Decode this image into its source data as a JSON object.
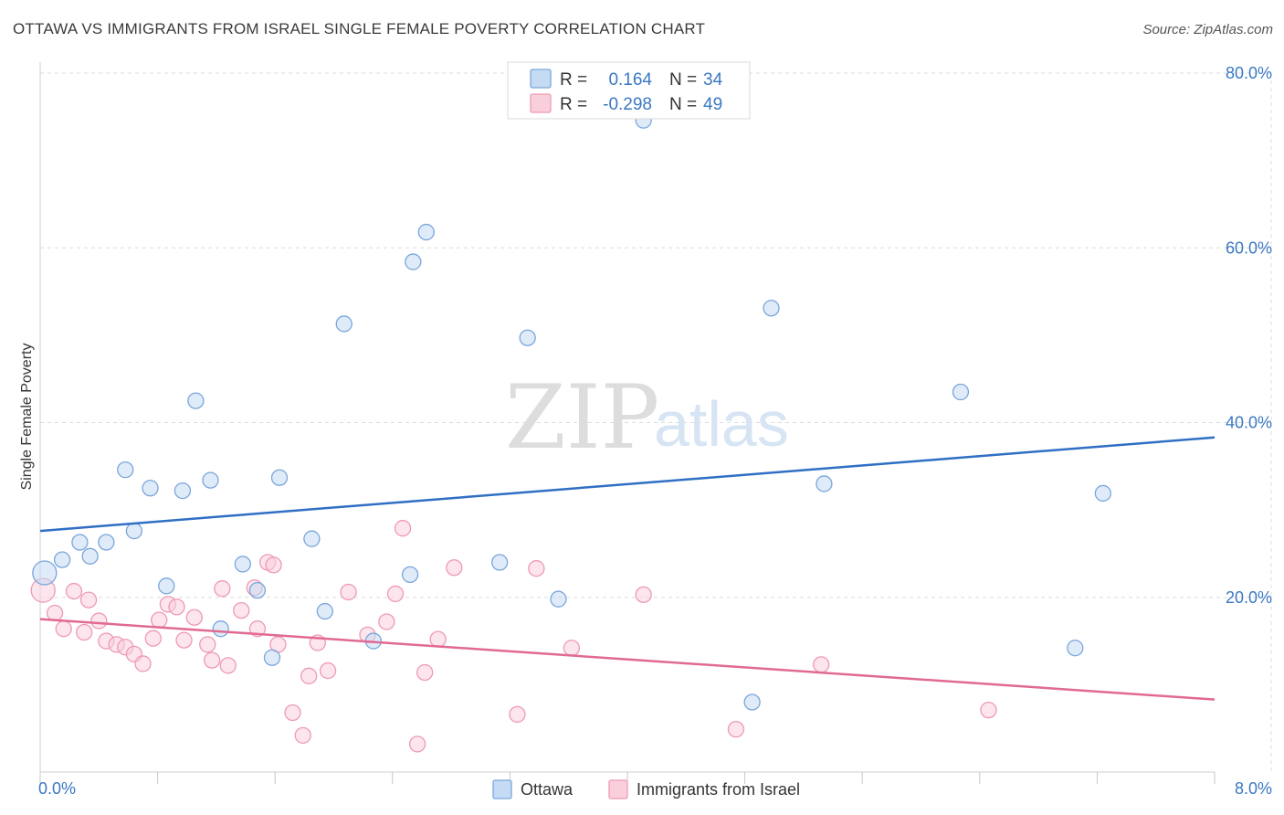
{
  "title": "OTTAWA VS IMMIGRANTS FROM ISRAEL SINGLE FEMALE POVERTY CORRELATION CHART",
  "source": "Source: ZipAtlas.com",
  "watermark": {
    "zip": "ZIP",
    "atlas": "atlas"
  },
  "colors": {
    "ottawa_fill": "#c5daf3",
    "ottawa_stroke": "#7aa6dc",
    "ottawa_line": "#2f6fc4",
    "israel_fill": "#f9cfdc",
    "israel_stroke": "#ee9ab4",
    "israel_line": "#e06a93",
    "grid": "#dcdcdc",
    "axis_text": "#3a78c2"
  },
  "legend": {
    "rows": [
      {
        "r_label": "R = ",
        "r_value": "0.164",
        "n_label": "N = ",
        "n_value": "34"
      },
      {
        "r_label": "R = ",
        "r_value": "-0.298",
        "n_label": "N = ",
        "n_value": "49"
      }
    ]
  },
  "chart_data": {
    "type": "scatter",
    "title": "OTTAWA VS IMMIGRANTS FROM ISRAEL SINGLE FEMALE POVERTY CORRELATION CHART",
    "xlabel": "",
    "ylabel": "Single Female Poverty",
    "xlim": [
      0,
      8
    ],
    "ylim": [
      0,
      80
    ],
    "x_ticks": [
      0,
      0.8,
      1.6,
      2.4,
      3.2,
      4.0,
      4.8,
      5.6,
      6.4,
      7.2,
      8.0
    ],
    "x_tick_labels": {
      "0": "0.0%",
      "8": "8.0%"
    },
    "y_ticks": [
      20,
      40,
      60,
      80
    ],
    "y_tick_labels": [
      "20.0%",
      "40.0%",
      "60.0%",
      "80.0%"
    ],
    "grid": true,
    "legend_position": "top-center",
    "series": [
      {
        "name": "Ottawa",
        "r": 0.164,
        "n": 34,
        "trend": [
          [
            0,
            27.6
          ],
          [
            8,
            38.3
          ]
        ],
        "points": [
          [
            0.03,
            22.8
          ],
          [
            0.15,
            24.3
          ],
          [
            0.27,
            26.3
          ],
          [
            0.34,
            24.7
          ],
          [
            0.45,
            26.3
          ],
          [
            0.58,
            34.6
          ],
          [
            0.64,
            27.6
          ],
          [
            0.75,
            32.5
          ],
          [
            0.86,
            21.3
          ],
          [
            0.97,
            32.2
          ],
          [
            1.06,
            42.5
          ],
          [
            1.16,
            33.4
          ],
          [
            1.23,
            16.4
          ],
          [
            1.38,
            23.8
          ],
          [
            1.48,
            20.8
          ],
          [
            1.58,
            13.1
          ],
          [
            1.63,
            33.7
          ],
          [
            1.85,
            26.7
          ],
          [
            1.94,
            18.4
          ],
          [
            2.07,
            51.3
          ],
          [
            2.27,
            15.0
          ],
          [
            2.52,
            22.6
          ],
          [
            2.54,
            58.4
          ],
          [
            2.63,
            61.8
          ],
          [
            3.13,
            24.0
          ],
          [
            3.32,
            49.7
          ],
          [
            3.53,
            19.8
          ],
          [
            4.11,
            74.6
          ],
          [
            4.85,
            8.0
          ],
          [
            4.98,
            53.1
          ],
          [
            5.34,
            33.0
          ],
          [
            6.27,
            43.5
          ],
          [
            7.05,
            14.2
          ],
          [
            7.24,
            31.9
          ]
        ]
      },
      {
        "name": "Immigrants from Israel",
        "r": -0.298,
        "n": 49,
        "trend": [
          [
            0,
            17.5
          ],
          [
            8,
            8.3
          ]
        ],
        "points": [
          [
            0.02,
            20.8
          ],
          [
            0.1,
            18.2
          ],
          [
            0.16,
            16.4
          ],
          [
            0.23,
            20.7
          ],
          [
            0.3,
            16.0
          ],
          [
            0.33,
            19.7
          ],
          [
            0.4,
            17.3
          ],
          [
            0.45,
            15.0
          ],
          [
            0.52,
            14.6
          ],
          [
            0.58,
            14.3
          ],
          [
            0.64,
            13.5
          ],
          [
            0.7,
            12.4
          ],
          [
            0.77,
            15.3
          ],
          [
            0.81,
            17.4
          ],
          [
            0.87,
            19.2
          ],
          [
            0.93,
            18.9
          ],
          [
            0.98,
            15.1
          ],
          [
            1.05,
            17.7
          ],
          [
            1.14,
            14.6
          ],
          [
            1.17,
            12.8
          ],
          [
            1.24,
            21.0
          ],
          [
            1.28,
            12.2
          ],
          [
            1.37,
            18.5
          ],
          [
            1.46,
            21.1
          ],
          [
            1.48,
            16.4
          ],
          [
            1.55,
            24.0
          ],
          [
            1.59,
            23.7
          ],
          [
            1.62,
            14.6
          ],
          [
            1.72,
            6.8
          ],
          [
            1.79,
            4.2
          ],
          [
            1.83,
            11.0
          ],
          [
            1.89,
            14.8
          ],
          [
            1.96,
            11.6
          ],
          [
            2.1,
            20.6
          ],
          [
            2.23,
            15.7
          ],
          [
            2.36,
            17.2
          ],
          [
            2.42,
            20.4
          ],
          [
            2.47,
            27.9
          ],
          [
            2.57,
            3.2
          ],
          [
            2.62,
            11.4
          ],
          [
            2.71,
            15.2
          ],
          [
            2.82,
            23.4
          ],
          [
            3.25,
            6.6
          ],
          [
            3.38,
            23.3
          ],
          [
            3.62,
            14.2
          ],
          [
            4.11,
            20.3
          ],
          [
            4.74,
            4.9
          ],
          [
            5.32,
            12.3
          ],
          [
            6.46,
            7.1
          ]
        ]
      }
    ]
  }
}
